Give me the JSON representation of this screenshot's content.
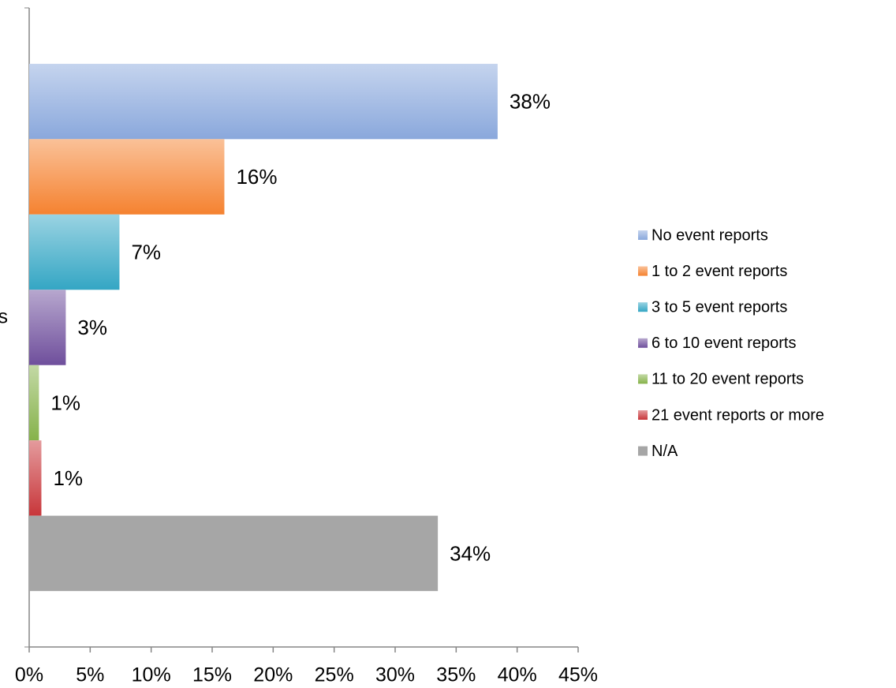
{
  "chart_data": {
    "type": "bar",
    "orientation": "horizontal",
    "categories": [
      "s"
    ],
    "series": [
      {
        "name": "No event reports",
        "color": "#8aa8dc",
        "values": [
          38.4
        ],
        "value_labels": [
          "38%"
        ]
      },
      {
        "name": "1 to 2 event reports",
        "color": "#f58230",
        "values": [
          16.0
        ],
        "value_labels": [
          "16%"
        ]
      },
      {
        "name": "3 to 5 event reports",
        "color": "#34a6c4",
        "values": [
          7.4
        ],
        "value_labels": [
          "7%"
        ]
      },
      {
        "name": "6 to 10 event reports",
        "color": "#6f4f9c",
        "values": [
          3.0
        ],
        "value_labels": [
          "3%"
        ]
      },
      {
        "name": "11 to 20 event reports",
        "color": "#86b24a",
        "values": [
          0.8
        ],
        "value_labels": [
          "1%"
        ]
      },
      {
        "name": "21 event reports or more",
        "color": "#c8363a",
        "values": [
          1.0
        ],
        "value_labels": [
          "1%"
        ]
      },
      {
        "name": "N/A",
        "color": "#a6a6a6",
        "values": [
          33.5
        ],
        "value_labels": [
          "34%"
        ]
      }
    ],
    "xlim": [
      0,
      45
    ],
    "xticks": [
      {
        "value": 0,
        "label": "0%"
      },
      {
        "value": 5,
        "label": "5%"
      },
      {
        "value": 10,
        "label": "10%"
      },
      {
        "value": 15,
        "label": "15%"
      },
      {
        "value": 20,
        "label": "20%"
      },
      {
        "value": 25,
        "label": "25%"
      },
      {
        "value": 30,
        "label": "30%"
      },
      {
        "value": 35,
        "label": "35%"
      },
      {
        "value": 40,
        "label": "40%"
      },
      {
        "value": 45,
        "label": "45%"
      }
    ],
    "legend": "right"
  }
}
